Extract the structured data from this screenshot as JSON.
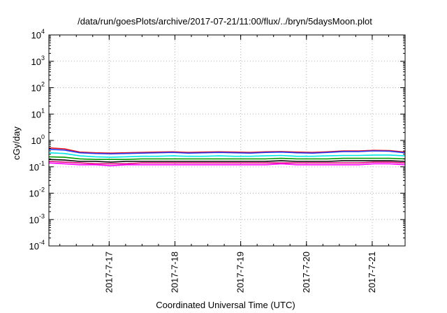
{
  "chart_data": {
    "type": "line",
    "title": "/data/run/goesPlots/archive/2017-07-21/11:00/flux/../bryn/5daysMoon.plot",
    "xlabel": "Coordinated Universal Time (UTC)",
    "ylabel": "cGy/day",
    "yscale": "log",
    "ylim": [
      0.0001,
      10000
    ],
    "xlim": [
      "2017-07-16 02:00",
      "2017-07-21 12:00"
    ],
    "grid": true,
    "y_ticks": [
      {
        "base": "10",
        "exp": "-4"
      },
      {
        "base": "10",
        "exp": "-3"
      },
      {
        "base": "10",
        "exp": "-2"
      },
      {
        "base": "10",
        "exp": "-1"
      },
      {
        "base": "10",
        "exp": "0"
      },
      {
        "base": "10",
        "exp": "1"
      },
      {
        "base": "10",
        "exp": "2"
      },
      {
        "base": "10",
        "exp": "3"
      },
      {
        "base": "10",
        "exp": "4"
      }
    ],
    "x_ticks": [
      "2017-7-17",
      "2017-7-18",
      "2017-7-19",
      "2017-7-20",
      "2017-7-21"
    ],
    "series": [
      {
        "color": "#e8101c",
        "values": [
          0.52,
          0.48,
          0.36,
          0.34,
          0.33,
          0.34,
          0.35,
          0.36,
          0.37,
          0.35,
          0.36,
          0.37,
          0.36,
          0.35,
          0.37,
          0.38,
          0.36,
          0.35,
          0.37,
          0.4,
          0.4,
          0.42,
          0.41,
          0.36
        ]
      },
      {
        "color": "#2a3cf0",
        "values": [
          0.46,
          0.43,
          0.34,
          0.32,
          0.31,
          0.32,
          0.33,
          0.34,
          0.35,
          0.33,
          0.34,
          0.35,
          0.34,
          0.33,
          0.35,
          0.36,
          0.34,
          0.33,
          0.35,
          0.38,
          0.38,
          0.4,
          0.39,
          0.34
        ]
      },
      {
        "color": "#00e5e5",
        "values": [
          0.34,
          0.32,
          0.26,
          0.24,
          0.23,
          0.24,
          0.25,
          0.25,
          0.26,
          0.25,
          0.25,
          0.26,
          0.25,
          0.25,
          0.26,
          0.27,
          0.25,
          0.25,
          0.26,
          0.27,
          0.27,
          0.28,
          0.28,
          0.26
        ]
      },
      {
        "color": "#009a00",
        "values": [
          0.24,
          0.23,
          0.2,
          0.19,
          0.19,
          0.19,
          0.2,
          0.2,
          0.2,
          0.2,
          0.2,
          0.2,
          0.2,
          0.2,
          0.2,
          0.21,
          0.2,
          0.2,
          0.2,
          0.21,
          0.21,
          0.21,
          0.21,
          0.2
        ]
      },
      {
        "color": "#000000",
        "values": [
          0.19,
          0.18,
          0.16,
          0.16,
          0.15,
          0.16,
          0.16,
          0.16,
          0.16,
          0.16,
          0.16,
          0.16,
          0.16,
          0.16,
          0.16,
          0.17,
          0.16,
          0.16,
          0.16,
          0.17,
          0.17,
          0.17,
          0.17,
          0.16
        ]
      },
      {
        "color": "#e0007a",
        "values": [
          0.16,
          0.15,
          0.14,
          0.13,
          0.13,
          0.13,
          0.14,
          0.14,
          0.14,
          0.14,
          0.14,
          0.14,
          0.14,
          0.14,
          0.14,
          0.14,
          0.14,
          0.14,
          0.14,
          0.14,
          0.14,
          0.15,
          0.15,
          0.14
        ]
      },
      {
        "color": "#ff00ff",
        "values": [
          0.14,
          0.13,
          0.12,
          0.12,
          0.11,
          0.12,
          0.12,
          0.12,
          0.12,
          0.12,
          0.12,
          0.12,
          0.12,
          0.12,
          0.12,
          0.13,
          0.12,
          0.12,
          0.12,
          0.12,
          0.12,
          0.13,
          0.13,
          0.12
        ]
      }
    ]
  }
}
